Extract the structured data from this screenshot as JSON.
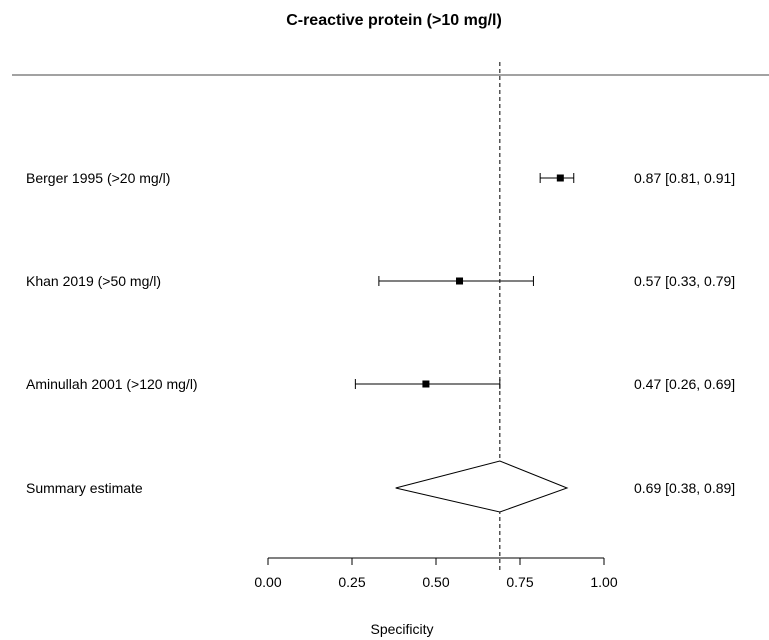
{
  "chart_data": {
    "type": "forest",
    "title": "C-reactive protein (>10 mg/l)",
    "xlabel": "Specificity",
    "xlim": [
      0,
      1
    ],
    "xticks": [
      "0.00",
      "0.25",
      "0.50",
      "0.75",
      "1.00"
    ],
    "tick_values": [
      0,
      0.25,
      0.5,
      0.75,
      1.0
    ],
    "reference_line": 0.69,
    "studies": [
      {
        "label": "Berger 1995 (>20 mg/l)",
        "estimate": 0.87,
        "lower": 0.81,
        "upper": 0.91,
        "text": "0.87 [0.81, 0.91]"
      },
      {
        "label": "Khan 2019 (>50 mg/l)",
        "estimate": 0.57,
        "lower": 0.33,
        "upper": 0.79,
        "text": "0.57 [0.33, 0.79]"
      },
      {
        "label": "Aminullah 2001 (>120 mg/l)",
        "estimate": 0.47,
        "lower": 0.26,
        "upper": 0.69,
        "text": "0.47 [0.26, 0.69]"
      }
    ],
    "summary": {
      "label": "Summary estimate",
      "estimate": 0.69,
      "lower": 0.38,
      "upper": 0.89,
      "text": "0.69 [0.38, 0.89]"
    }
  }
}
